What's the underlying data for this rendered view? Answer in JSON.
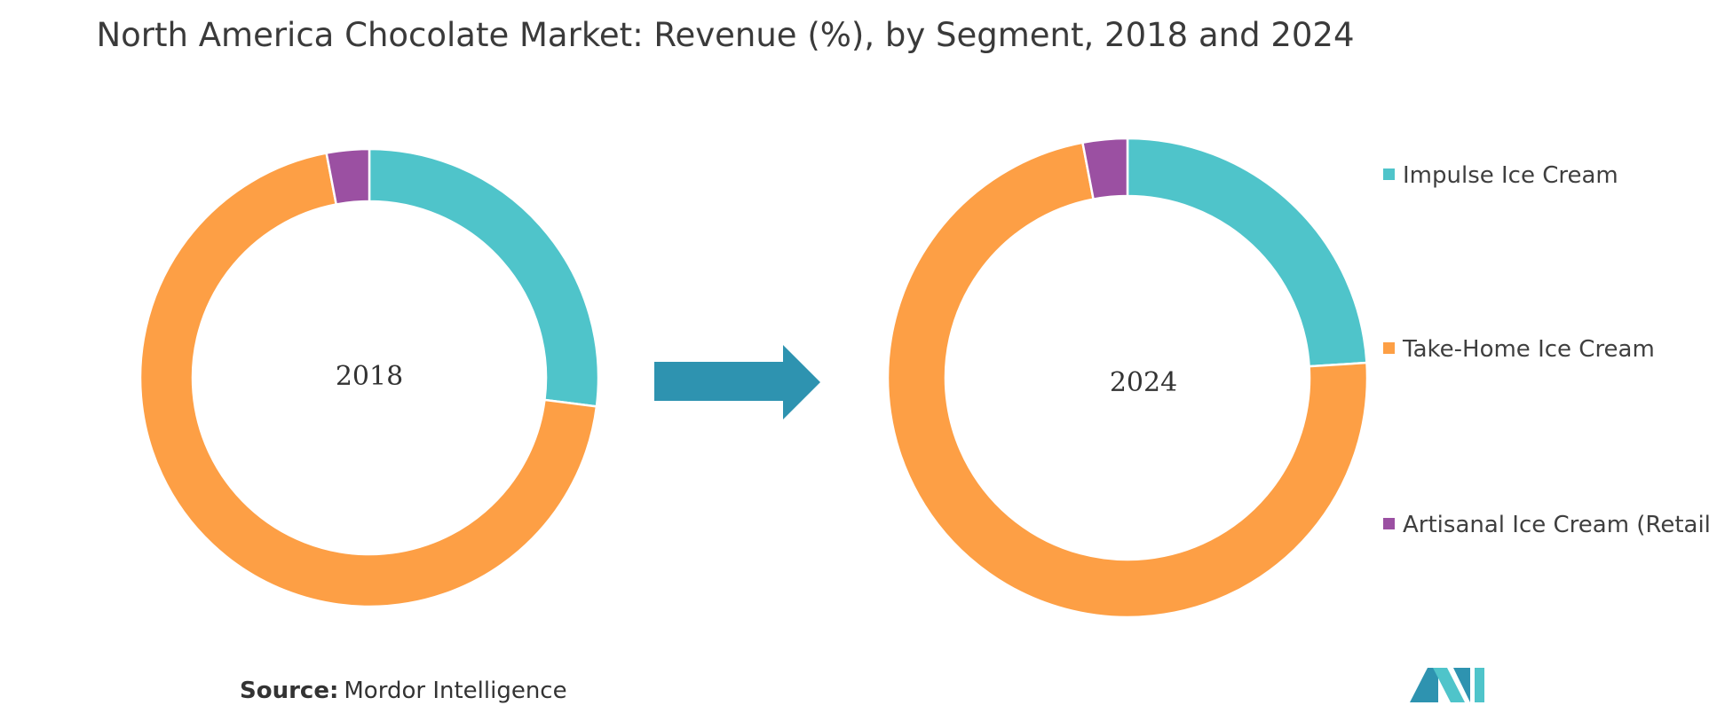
{
  "title": "North America Chocolate Market: Revenue (%), by Segment, 2018 and 2024",
  "source": {
    "label": "Source:",
    "text": "Mordor Intelligence"
  },
  "colors": {
    "arrow": "#2e93b0",
    "logo_dark": "#2e93b0",
    "logo_light": "#4fc4ca"
  },
  "chart_data": {
    "type": "pie",
    "variant": "donut",
    "legend_position": "right",
    "series_labels": [
      "Impulse Ice Cream",
      "Take-Home Ice Cream",
      "Artisanal Ice Cream (Retail)"
    ],
    "series_colors": [
      "#4fc4ca",
      "#fd9f45",
      "#9b50a2"
    ],
    "pies": [
      {
        "label": "2018",
        "values": [
          27,
          70,
          3
        ]
      },
      {
        "label": "2024",
        "values": [
          24,
          73,
          3
        ]
      }
    ]
  }
}
